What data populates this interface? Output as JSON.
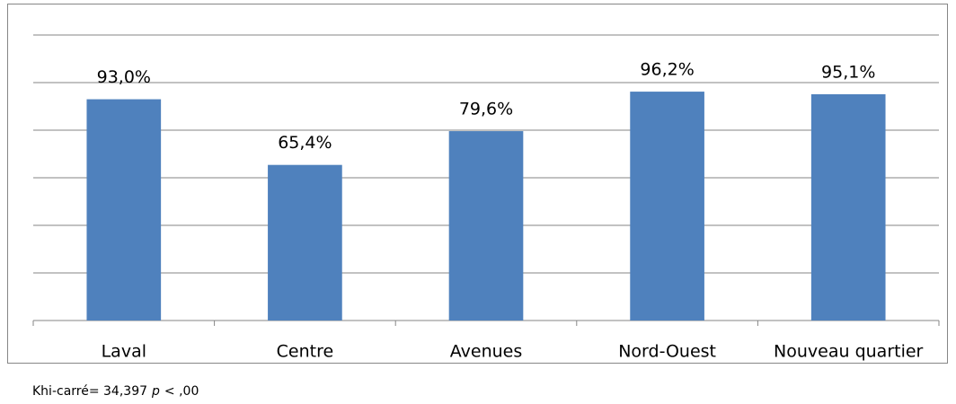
{
  "chart_data": {
    "type": "bar",
    "categories": [
      "Laval",
      "Centre",
      "Avenues",
      "Nord-Ouest",
      "Nouveau quartier"
    ],
    "values": [
      93.0,
      65.4,
      79.6,
      96.2,
      95.1
    ],
    "value_labels": [
      "93,0%",
      "65,4%",
      "79,6%",
      "96,2%",
      "95,1%"
    ],
    "color": "#4f81bd",
    "ylim": [
      0,
      120
    ],
    "yticks": [
      0,
      20,
      40,
      60,
      80,
      100,
      120
    ],
    "grid": true,
    "footnote": [
      "Khi-carré= 34,397",
      "p",
      "< ,00"
    ]
  }
}
